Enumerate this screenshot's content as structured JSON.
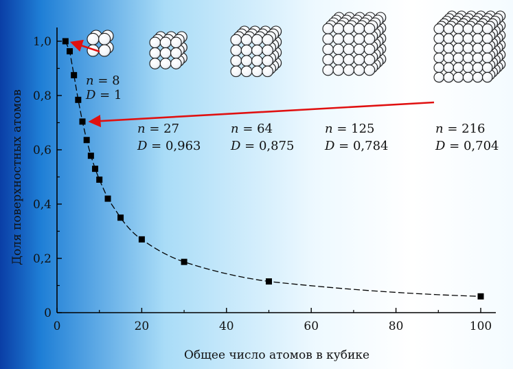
{
  "chart_data": {
    "type": "scatter",
    "title": "",
    "xlabel": "Общее число атомов в кубике",
    "ylabel": "Доля поверхностных атомов",
    "xlim": [
      0,
      100
    ],
    "ylim": [
      0,
      1.0
    ],
    "x_ticks": [
      "0",
      "20",
      "40",
      "60",
      "80",
      "100"
    ],
    "y_ticks": [
      "0",
      "0,2",
      "0,4",
      "0,6",
      "0,8",
      "1,0"
    ],
    "grid": false,
    "series": [
      {
        "x": [
          2,
          3,
          4,
          5,
          6,
          7,
          8,
          9,
          10,
          12,
          15,
          20,
          30,
          50,
          100
        ],
        "y": [
          1.0,
          0.963,
          0.875,
          0.784,
          0.704,
          0.636,
          0.578,
          0.53,
          0.49,
          0.42,
          0.35,
          0.27,
          0.187,
          0.115,
          0.06
        ],
        "marker": "square",
        "color": "#000000",
        "fit_line": "dashed"
      }
    ],
    "annotations": [
      {
        "n": "8",
        "D": "1",
        "cube_size": 2
      },
      {
        "n": "27",
        "D": "0,963",
        "cube_size": 3
      },
      {
        "n": "64",
        "D": "0,875",
        "cube_size": 4
      },
      {
        "n": "125",
        "D": "0,784",
        "cube_size": 5
      },
      {
        "n": "216",
        "D": "0,704",
        "cube_size": 6
      }
    ],
    "arrow_color": "#e01010"
  }
}
